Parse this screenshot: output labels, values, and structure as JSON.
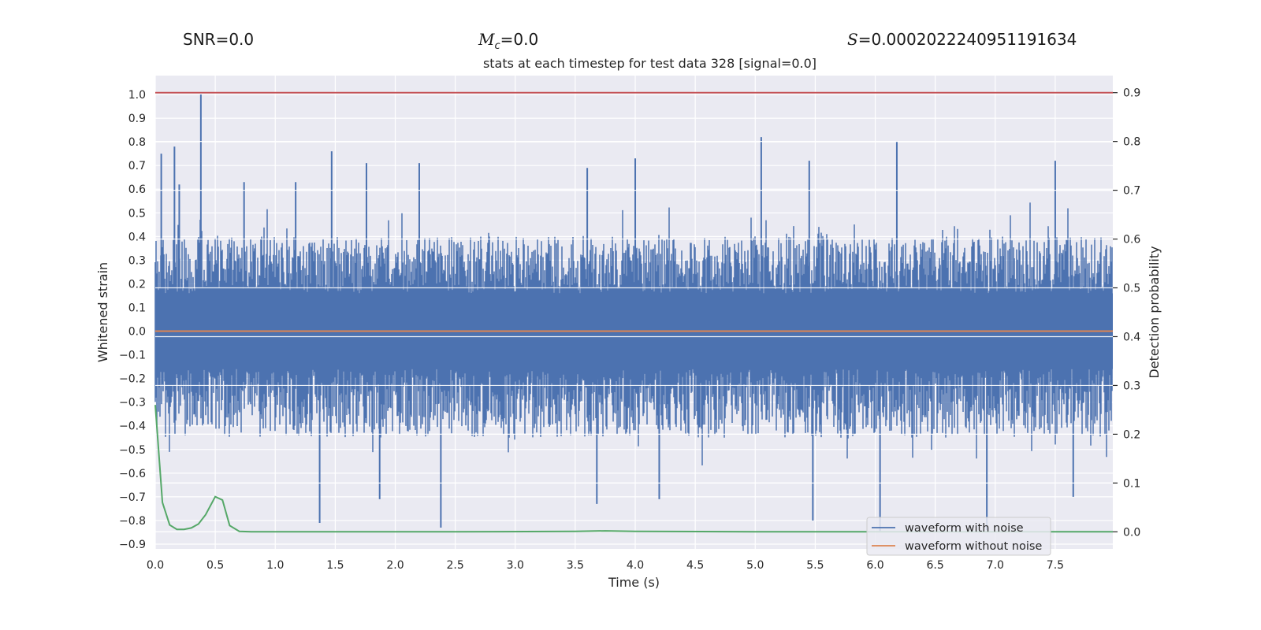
{
  "header": {
    "snr_label": "SNR",
    "snr_value": "0.0",
    "mc_symbol": "M",
    "mc_subscript": "c",
    "mc_value": "0.0",
    "s_symbol": "S",
    "s_value": "0.0002022240951191634"
  },
  "chart_data": {
    "type": "line",
    "title": "stats at each timestep for test data 328 [signal=0.0]",
    "xlabel": "Time (s)",
    "ylabel": "Whitened strain",
    "y2label": "Detection probability",
    "xlim": [
      0.0,
      7.98
    ],
    "ylim": [
      -0.92,
      1.08
    ],
    "y2lim": [
      -0.035,
      0.935
    ],
    "xticks": [
      "0.0",
      "0.5",
      "1.0",
      "1.5",
      "2.0",
      "2.5",
      "3.0",
      "3.5",
      "4.0",
      "4.5",
      "5.0",
      "5.5",
      "6.0",
      "6.5",
      "7.0",
      "7.5"
    ],
    "yticks": [
      "1.0",
      "0.9",
      "0.8",
      "0.7",
      "0.6",
      "0.5",
      "0.4",
      "0.3",
      "0.2",
      "0.1",
      "0.0",
      "−0.1",
      "−0.2",
      "−0.3",
      "−0.4",
      "−0.5",
      "−0.6",
      "−0.7",
      "−0.8",
      "−0.9"
    ],
    "y2ticks": [
      "0.9",
      "0.8",
      "0.7",
      "0.6",
      "0.5",
      "0.4",
      "0.3",
      "0.2",
      "0.1",
      "0.0"
    ],
    "grid": true,
    "legend_position": "lower-right",
    "threshold_line": {
      "axis": "y2",
      "value": 0.9,
      "color": "#c44e52"
    },
    "series": [
      {
        "name": "waveform with noise",
        "axis": "y",
        "color": "#4c72b0",
        "approx_band": [
          -0.45,
          0.4
        ],
        "peaks": [
          {
            "x": 0.05,
            "y": 0.75
          },
          {
            "x": 0.16,
            "y": 0.78
          },
          {
            "x": 0.2,
            "y": 0.62
          },
          {
            "x": 0.38,
            "y": 1.0
          },
          {
            "x": 0.74,
            "y": 0.63
          },
          {
            "x": 1.17,
            "y": 0.63
          },
          {
            "x": 1.47,
            "y": 0.76
          },
          {
            "x": 1.76,
            "y": 0.71
          },
          {
            "x": 2.2,
            "y": 0.71
          },
          {
            "x": 3.6,
            "y": 0.69
          },
          {
            "x": 4.0,
            "y": 0.73
          },
          {
            "x": 5.05,
            "y": 0.82
          },
          {
            "x": 5.45,
            "y": 0.72
          },
          {
            "x": 6.18,
            "y": 0.8
          },
          {
            "x": 7.5,
            "y": 0.72
          }
        ],
        "troughs": [
          {
            "x": 1.37,
            "y": -0.81
          },
          {
            "x": 1.87,
            "y": -0.71
          },
          {
            "x": 2.38,
            "y": -0.83
          },
          {
            "x": 3.68,
            "y": -0.73
          },
          {
            "x": 4.2,
            "y": -0.71
          },
          {
            "x": 5.48,
            "y": -0.8
          },
          {
            "x": 6.04,
            "y": -0.85
          },
          {
            "x": 6.93,
            "y": -0.84
          },
          {
            "x": 7.65,
            "y": -0.7
          }
        ]
      },
      {
        "name": "waveform without noise",
        "axis": "y",
        "color": "#dd8452",
        "x": [
          0.0,
          7.98
        ],
        "y": [
          0.0,
          0.0
        ]
      },
      {
        "axis": "y2",
        "color": "#55a868",
        "x": [
          0.0,
          0.06,
          0.12,
          0.18,
          0.24,
          0.3,
          0.36,
          0.42,
          0.5,
          0.56,
          0.62,
          0.7,
          0.8,
          1.5,
          2.5,
          3.5,
          3.75,
          4.0,
          5.0,
          6.0,
          7.0,
          7.98
        ],
        "y": [
          0.26,
          0.06,
          0.014,
          0.005,
          0.005,
          0.008,
          0.016,
          0.035,
          0.072,
          0.065,
          0.013,
          0.001,
          0.0,
          0.0,
          0.0,
          0.001,
          0.002,
          0.001,
          0.0,
          0.0,
          0.0,
          0.0
        ]
      }
    ]
  }
}
